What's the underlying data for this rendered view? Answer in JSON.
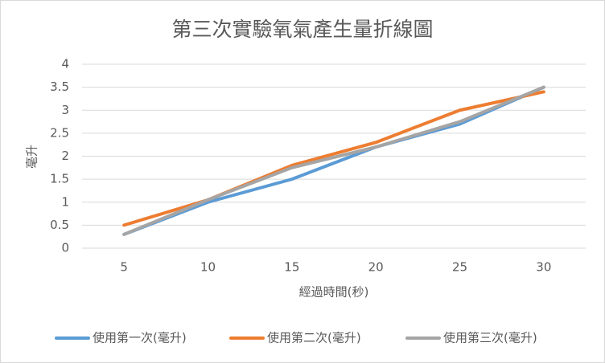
{
  "chart_data": {
    "type": "line",
    "title": "第三次實驗氧氣產生量折線圖",
    "x_label": "經過時間(秒)",
    "y_label": "毫升",
    "categories": [
      "5",
      "10",
      "15",
      "20",
      "25",
      "30"
    ],
    "series": [
      {
        "name": "使用第一次(毫升)",
        "color": "#5b9bd5",
        "values": [
          0.3,
          1.0,
          1.5,
          2.2,
          2.7,
          3.5
        ]
      },
      {
        "name": "使用第二次(毫升)",
        "color": "#ed7d31",
        "values": [
          0.5,
          1.05,
          1.8,
          2.3,
          3.0,
          3.4
        ]
      },
      {
        "name": "使用第三次(毫升)",
        "color": "#a5a5a5",
        "values": [
          0.3,
          1.05,
          1.75,
          2.2,
          2.75,
          3.5
        ]
      }
    ],
    "ylim": [
      0,
      4
    ],
    "yticks": [
      0,
      0.5,
      1,
      1.5,
      2,
      2.5,
      3,
      3.5,
      4
    ],
    "grid": true,
    "legend": "bottom"
  }
}
